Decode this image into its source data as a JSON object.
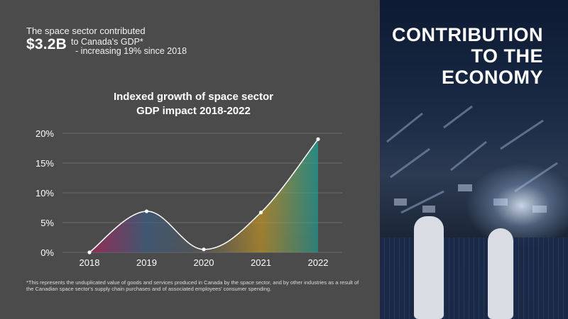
{
  "stat": {
    "line1": "The space sector contributed",
    "amount": "$3.2B",
    "side1": "to Canada's GDP*",
    "side2": "- increasing 19% since 2018"
  },
  "hero_title": [
    "CONTRIBUTION",
    "TO THE",
    "ECONOMY"
  ],
  "chart_data": {
    "type": "area",
    "title_lines": [
      "Indexed growth of space sector",
      "GDP impact 2018-2022"
    ],
    "categories": [
      "2018",
      "2019",
      "2020",
      "2021",
      "2022"
    ],
    "values": [
      0,
      6.9,
      0.5,
      6.7,
      19.0
    ],
    "y_ticks": [
      "0%",
      "5%",
      "10%",
      "15%",
      "20%"
    ],
    "ylim": [
      0,
      20
    ],
    "grid": true,
    "colors": {
      "line": "#ffffff",
      "gradient_stops": [
        "#c2185b",
        "#3a5f8a",
        "#5a5a5a",
        "#d4a020",
        "#1aa39a"
      ]
    }
  },
  "footnote": "*This represents the unduplicated value of goods and services produced in Canada by the space sector, and by other industries as a result of the Canadian space sector's supply chain purchases and of associated employees' consumer spending."
}
